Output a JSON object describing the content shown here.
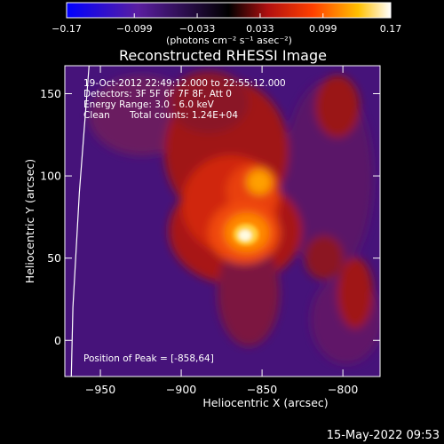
{
  "chart_data": {
    "type": "heatmap",
    "title": "Reconstructed RHESSI Image",
    "xlabel": "Heliocentric X (arcsec)",
    "ylabel": "Heliocentric Y (arcsec)",
    "xlim": [
      -972,
      -777
    ],
    "ylim": [
      -22,
      167
    ],
    "x_ticks": [
      -950,
      -900,
      -850,
      -800
    ],
    "y_ticks": [
      0,
      50,
      100,
      150
    ],
    "x_tick_labels": [
      "−950",
      "−900",
      "−850",
      "−800"
    ],
    "y_tick_labels": [
      "0",
      "50",
      "100",
      "150"
    ],
    "colorbar": {
      "range": [
        -0.17,
        0.17
      ],
      "ticks": [
        -0.17,
        -0.099,
        -0.033,
        0.033,
        0.099,
        0.17
      ],
      "tick_labels": [
        "−0.17",
        "−0.099",
        "−0.033",
        "0.033",
        "0.099",
        "0.17"
      ],
      "units": "(photons cm⁻² s⁻¹ asec⁻²)",
      "colors": [
        "#0000ff",
        "#5a1ea0",
        "#000000",
        "#b01010",
        "#ff4000",
        "#ffc000",
        "#ffffff"
      ]
    },
    "annotations": [
      "19-Oct-2012 22:49:12.000 to 22:55:12.000",
      "Detectors: 3F 5F 6F 7F 8F, Att 0",
      "Energy Range: 3.0 - 6.0 keV",
      "Clean",
      "Total counts: 1.24E+04",
      "Position of Peak = [-858,64]"
    ],
    "peak": {
      "x": -858,
      "y": 64
    },
    "limb_arc": [
      [
        -957,
        167
      ],
      [
        -963,
        90
      ],
      [
        -967,
        20
      ],
      [
        -968,
        -22
      ]
    ]
  },
  "timestamp": "15-May-2022 09:53"
}
